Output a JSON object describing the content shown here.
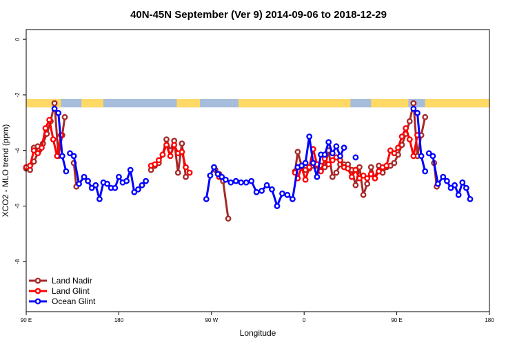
{
  "chart_data": {
    "type": "line",
    "title": "40N-45N September (Ver 9)   2014-09-06 to 2018-12-29",
    "xlabel": "Longitude",
    "ylabel": "XCO2 - MLO trend (ppm)",
    "xlim": [
      -90,
      270
    ],
    "ylim": [
      -9.8,
      0.35
    ],
    "x_ticks": [
      {
        "value": -90,
        "label": "90 E"
      },
      {
        "value": -18,
        "label": "180"
      },
      {
        "value": 54,
        "label": "90 W"
      },
      {
        "value": 126,
        "label": "0"
      },
      {
        "value": 198,
        "label": "90 E"
      },
      {
        "value": 270,
        "label": "180"
      }
    ],
    "y_ticks": [
      {
        "value": 0,
        "label": "0"
      },
      {
        "value": -2,
        "label": "-2"
      },
      {
        "value": -4,
        "label": "-4"
      },
      {
        "value": -6,
        "label": "-6"
      },
      {
        "value": -8,
        "label": "-8"
      }
    ],
    "land_ocean_strip": {
      "y_top": -2.15,
      "y_bottom": -2.45,
      "land_color": "#FFD966",
      "ocean_color": "#A6BDDB",
      "land_intervals": [
        [
          -90,
          -63
        ],
        [
          -47,
          -30
        ],
        [
          27,
          45
        ],
        [
          75,
          162
        ],
        [
          178,
          207
        ],
        [
          220,
          270
        ]
      ]
    },
    "legend_position": "bottom-left",
    "series": [
      {
        "name": "Land Nadir",
        "color": "#A52A2A",
        "segments": [
          [
            [
              -90,
              -4.65
            ],
            [
              -87,
              -4.7
            ],
            [
              -84,
              -4.4
            ],
            [
              -80,
              -4.0
            ],
            [
              -77,
              -3.75
            ],
            [
              -74,
              -3.4
            ],
            [
              -71,
              -2.95
            ],
            [
              -68,
              -2.3
            ],
            [
              -65,
              -4.2
            ],
            [
              -62,
              -3.45
            ],
            [
              -60,
              -2.8
            ]
          ],
          [
            [
              -53,
              -4.45
            ],
            [
              -51,
              -5.3
            ]
          ],
          [
            [
              -84,
              -3.9
            ],
            [
              -81,
              -3.85
            ]
          ],
          [
            [
              7,
              -4.7
            ],
            [
              10,
              -4.55
            ],
            [
              13,
              -4.45
            ],
            [
              16,
              -4.15
            ],
            [
              19,
              -3.6
            ],
            [
              22,
              -4.0
            ],
            [
              25,
              -3.65
            ],
            [
              28,
              -4.8
            ],
            [
              31,
              -3.75
            ],
            [
              34,
              -4.95
            ]
          ],
          [
            [
              67,
              -6.45
            ],
            [
              63,
              -5.1
            ],
            [
              60,
              -4.85
            ],
            [
              57,
              -4.7
            ]
          ],
          [
            [
              119,
              -4.75
            ],
            [
              121,
              -4.05
            ],
            [
              124,
              -4.55
            ],
            [
              127,
              -4.7
            ],
            [
              130,
              -4.65
            ],
            [
              133,
              -4.55
            ],
            [
              136,
              -4.7
            ],
            [
              139,
              -4.55
            ],
            [
              142,
              -4.6
            ],
            [
              145,
              -4.0
            ],
            [
              148,
              -4.95
            ],
            [
              151,
              -4.8
            ],
            [
              154,
              -4.5
            ],
            [
              157,
              -4.5
            ],
            [
              160,
              -4.5
            ],
            [
              163,
              -4.7
            ],
            [
              166,
              -5.25
            ],
            [
              169,
              -4.6
            ],
            [
              172,
              -5.6
            ],
            [
              175,
              -5.2
            ],
            [
              178,
              -4.6
            ],
            [
              181,
              -5.0
            ],
            [
              184,
              -4.55
            ],
            [
              187,
              -4.8
            ],
            [
              190,
              -4.6
            ],
            [
              193,
              -4.55
            ],
            [
              196,
              -4.45
            ],
            [
              199,
              -4.15
            ],
            [
              202,
              -3.8
            ],
            [
              205,
              -3.4
            ],
            [
              208,
              -2.95
            ],
            [
              211,
              -2.3
            ],
            [
              214,
              -4.2
            ],
            [
              217,
              -3.45
            ],
            [
              220,
              -2.8
            ]
          ],
          [
            [
              227,
              -4.45
            ],
            [
              229,
              -5.3
            ]
          ]
        ]
      },
      {
        "name": "Land Glint",
        "color": "#FF0000",
        "segments": [
          [
            [
              -90,
              -4.6
            ],
            [
              -87,
              -4.55
            ],
            [
              -84,
              -4.0
            ],
            [
              -81,
              -4.1
            ],
            [
              -78,
              -3.9
            ],
            [
              -75,
              -3.2
            ],
            [
              -72,
              -2.9
            ],
            [
              -69,
              -3.6
            ],
            [
              -66,
              -4.2
            ],
            [
              -63,
              -3.45
            ]
          ],
          [
            [
              7,
              -4.55
            ],
            [
              10,
              -4.5
            ],
            [
              13,
              -4.35
            ],
            [
              16,
              -4.15
            ],
            [
              19,
              -3.8
            ],
            [
              22,
              -4.2
            ],
            [
              25,
              -3.8
            ],
            [
              28,
              -4.1
            ],
            [
              31,
              -4.05
            ],
            [
              34,
              -4.6
            ],
            [
              37,
              -4.8
            ]
          ],
          [
            [
              60,
              -4.95
            ]
          ],
          [
            [
              119,
              -4.8
            ],
            [
              121,
              -5.0
            ],
            [
              124,
              -4.6
            ],
            [
              127,
              -5.05
            ],
            [
              130,
              -4.6
            ],
            [
              133,
              -3.95
            ],
            [
              136,
              -4.5
            ],
            [
              139,
              -4.75
            ],
            [
              142,
              -4.3
            ],
            [
              145,
              -4.5
            ],
            [
              148,
              -4.35
            ],
            [
              151,
              -4.25
            ],
            [
              154,
              -4.35
            ],
            [
              157,
              -4.6
            ],
            [
              160,
              -4.65
            ],
            [
              163,
              -4.95
            ],
            [
              166,
              -4.7
            ],
            [
              169,
              -5.0
            ],
            [
              172,
              -4.9
            ],
            [
              175,
              -5.0
            ],
            [
              178,
              -4.85
            ],
            [
              181,
              -5.0
            ],
            [
              184,
              -4.75
            ],
            [
              187,
              -4.6
            ],
            [
              190,
              -4.55
            ],
            [
              193,
              -4.0
            ],
            [
              196,
              -4.1
            ],
            [
              199,
              -3.9
            ],
            [
              202,
              -3.5
            ],
            [
              205,
              -3.2
            ],
            [
              208,
              -3.6
            ],
            [
              211,
              -4.2
            ],
            [
              214,
              -3.45
            ]
          ]
        ]
      },
      {
        "name": "Ocean Glint",
        "color": "#0000FF",
        "segments": [
          [
            [
              -68,
              -2.5
            ],
            [
              -65,
              -2.65
            ],
            [
              -62,
              -4.2
            ],
            [
              -59,
              -4.75
            ]
          ],
          [
            [
              -56,
              -4.1
            ],
            [
              -53,
              -4.2
            ],
            [
              -49,
              -5.2
            ],
            [
              -45,
              -4.95
            ],
            [
              -42,
              -5.1
            ],
            [
              -39,
              -5.35
            ],
            [
              -36,
              -5.25
            ],
            [
              -33,
              -5.75
            ],
            [
              -30,
              -5.15
            ],
            [
              -27,
              -5.2
            ],
            [
              -24,
              -5.35
            ],
            [
              -21,
              -5.35
            ],
            [
              -18,
              -4.95
            ],
            [
              -15,
              -5.15
            ],
            [
              -12,
              -5.1
            ],
            [
              -9,
              -4.7
            ],
            [
              -6,
              -5.5
            ],
            [
              -3,
              -5.4
            ],
            [
              0,
              -5.25
            ],
            [
              3,
              -5.1
            ]
          ],
          [
            [
              50,
              -5.75
            ],
            [
              53,
              -4.9
            ],
            [
              56,
              -4.6
            ],
            [
              59,
              -4.85
            ],
            [
              62,
              -4.95
            ],
            [
              65,
              -5.05
            ],
            [
              69,
              -5.15
            ],
            [
              73,
              -5.1
            ],
            [
              77,
              -5.15
            ],
            [
              81,
              -5.15
            ],
            [
              85,
              -5.1
            ],
            [
              89,
              -5.5
            ],
            [
              93,
              -5.45
            ],
            [
              97,
              -5.25
            ],
            [
              101,
              -5.4
            ],
            [
              105,
              -6.0
            ],
            [
              109,
              -5.55
            ],
            [
              113,
              -5.6
            ],
            [
              117,
              -5.75
            ],
            [
              121,
              -4.6
            ],
            [
              124,
              -4.55
            ],
            [
              127,
              -4.45
            ],
            [
              130,
              -3.5
            ],
            [
              133,
              -4.45
            ],
            [
              136,
              -4.95
            ],
            [
              139,
              -4.15
            ],
            [
              142,
              -4.15
            ],
            [
              145,
              -3.7
            ],
            [
              148,
              -4.1
            ],
            [
              151,
              -3.85
            ],
            [
              154,
              -4.2
            ],
            [
              157,
              -3.9
            ]
          ],
          [
            [
              166,
              -4.25
            ]
          ],
          [
            [
              211,
              -2.5
            ],
            [
              214,
              -2.65
            ],
            [
              217,
              -4.2
            ],
            [
              220,
              -4.75
            ]
          ],
          [
            [
              223,
              -4.1
            ],
            [
              226,
              -4.2
            ],
            [
              230,
              -5.2
            ],
            [
              234,
              -4.95
            ],
            [
              237,
              -5.1
            ],
            [
              240,
              -5.35
            ],
            [
              243,
              -5.25
            ],
            [
              246,
              -5.6
            ],
            [
              249,
              -5.15
            ],
            [
              252,
              -5.35
            ],
            [
              255,
              -5.75
            ]
          ]
        ]
      }
    ]
  }
}
